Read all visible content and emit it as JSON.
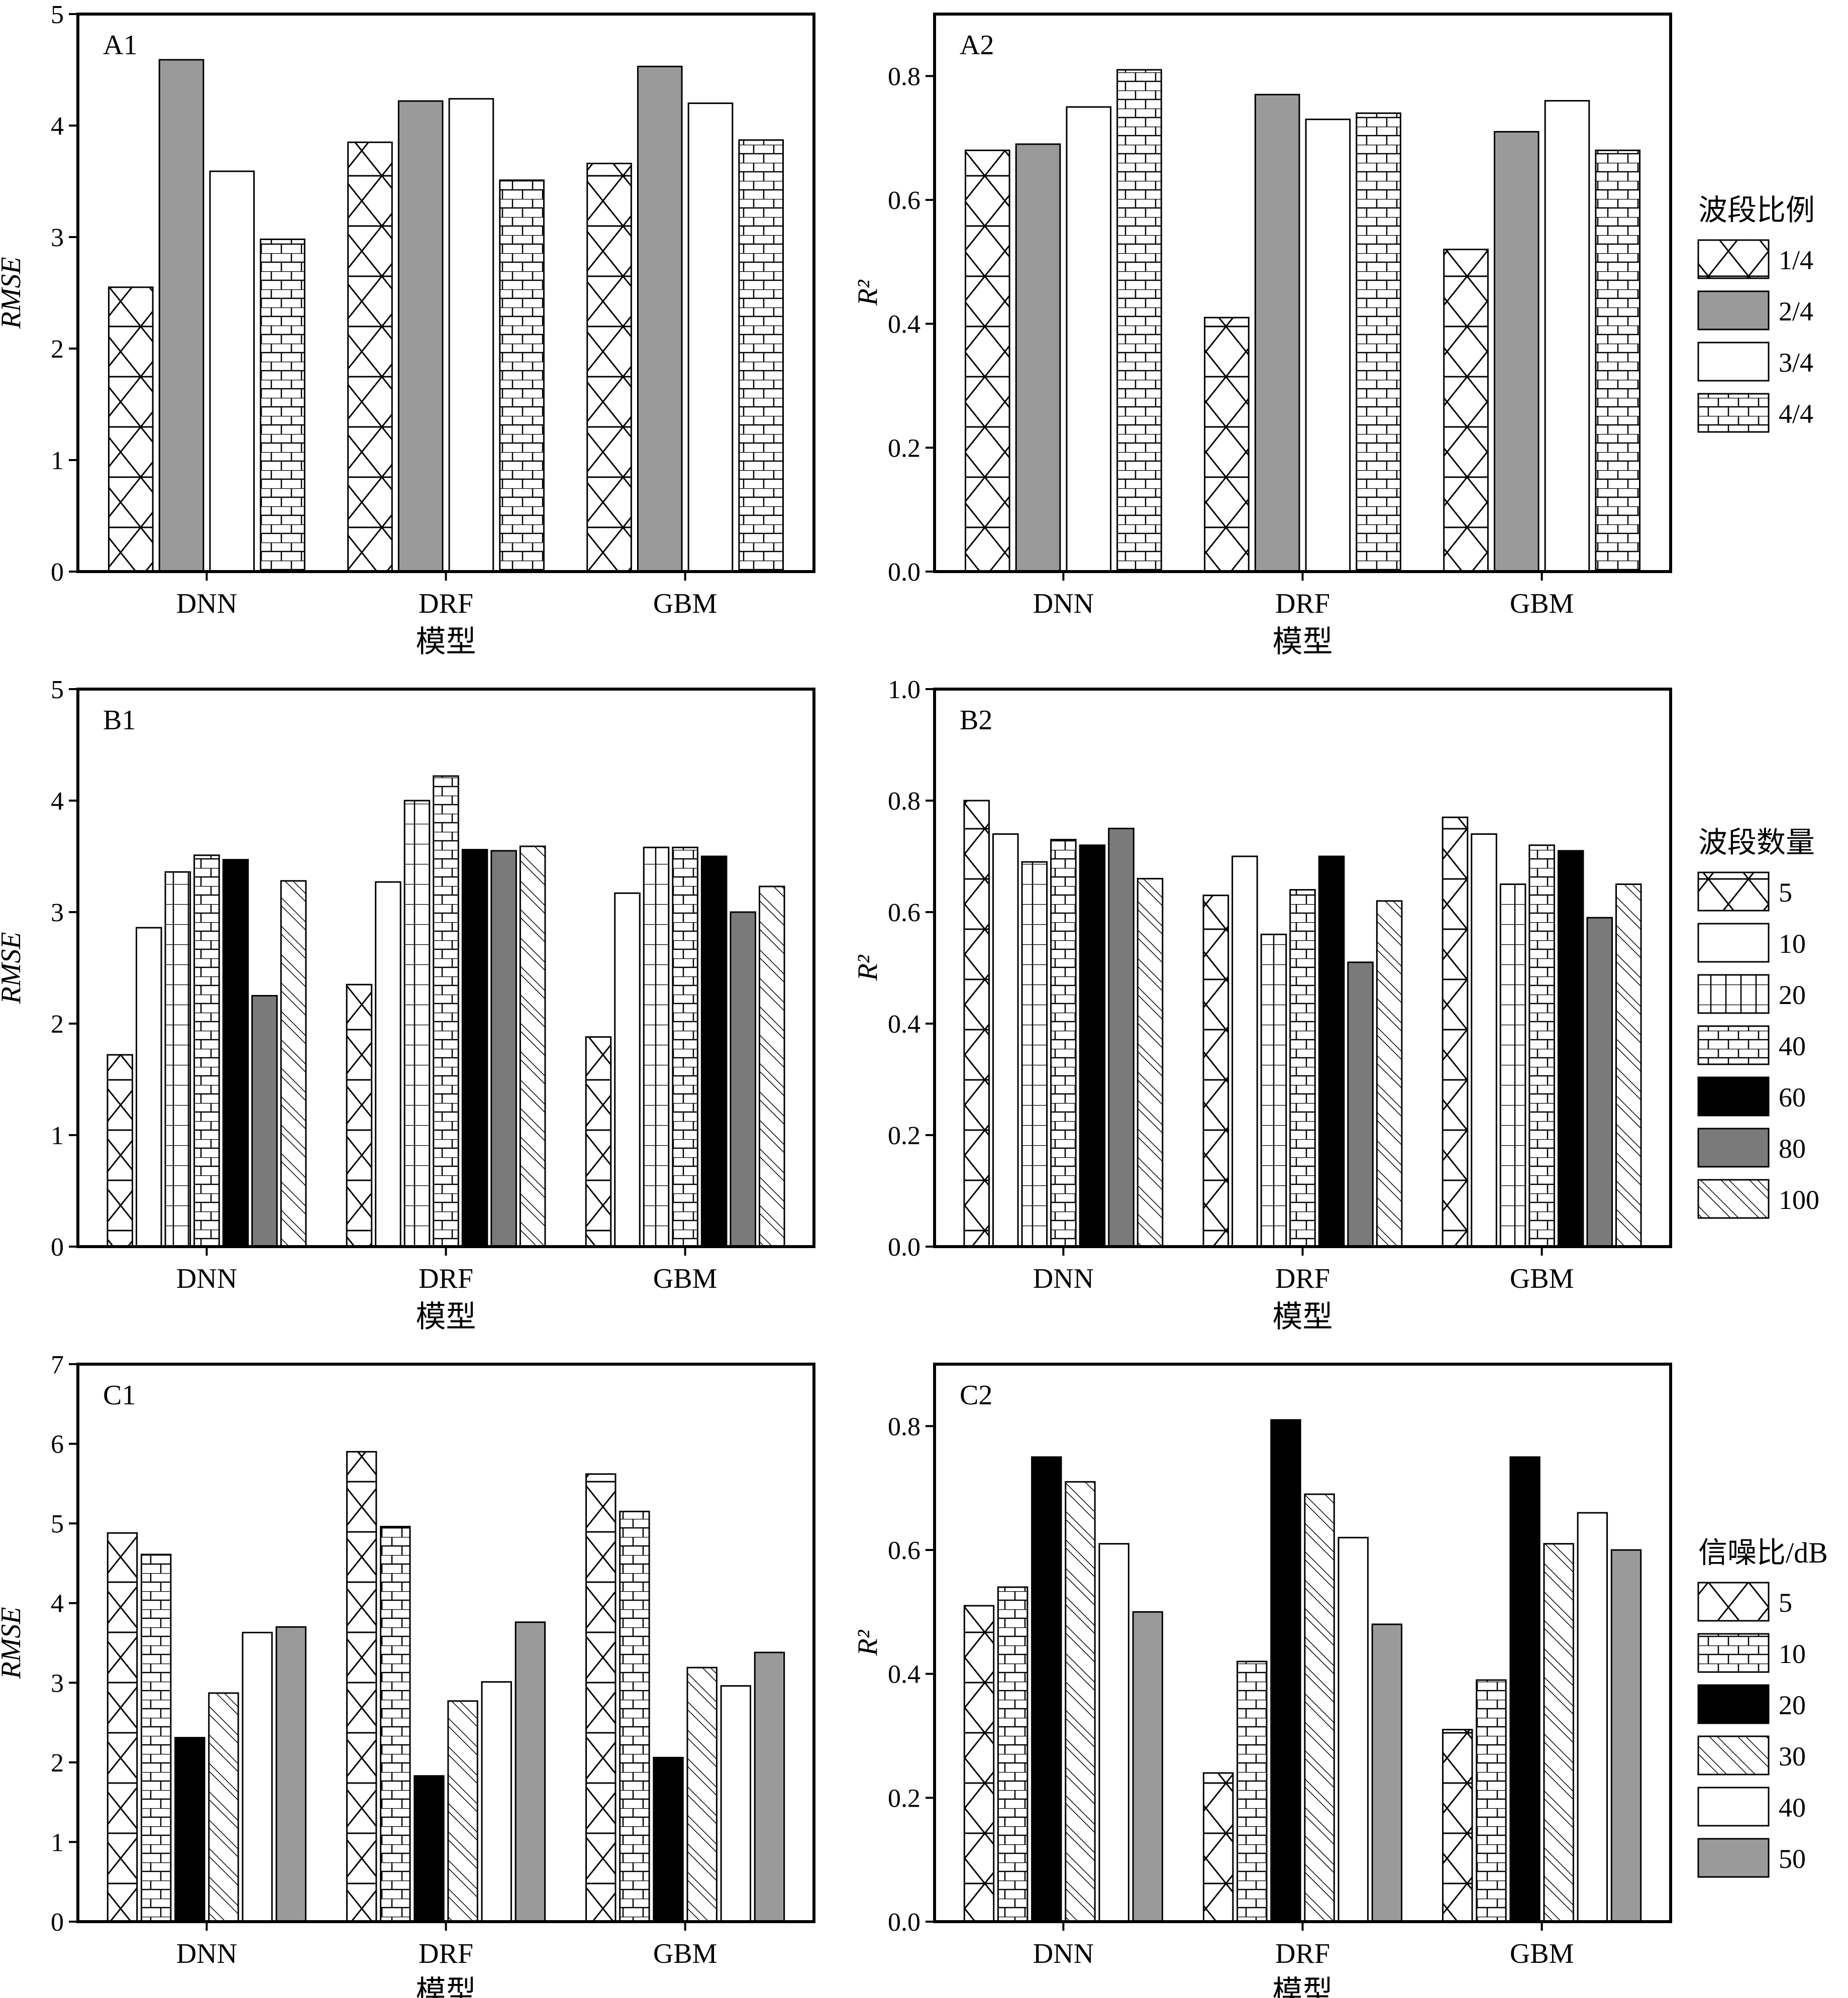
{
  "chart_data": [
    {
      "type": "bar",
      "panel_label": "A1",
      "categories": [
        "DNN",
        "DRF",
        "GBM"
      ],
      "xlabel": "模型",
      "ylabel": "RMSE",
      "ylim": [
        0,
        5
      ],
      "yticks": [
        "0",
        "1",
        "2",
        "3",
        "4",
        "5"
      ],
      "series": [
        {
          "pattern": "cross",
          "values": [
            2.55,
            3.85,
            3.66
          ]
        },
        {
          "pattern": "gray",
          "values": [
            4.59,
            4.22,
            4.53
          ]
        },
        {
          "pattern": "white",
          "values": [
            3.59,
            4.24,
            4.2
          ]
        },
        {
          "pattern": "brick",
          "values": [
            2.98,
            3.51,
            3.87
          ]
        }
      ]
    },
    {
      "type": "bar",
      "panel_label": "A2",
      "categories": [
        "DNN",
        "DRF",
        "GBM"
      ],
      "xlabel": "模型",
      "ylabel": "R²",
      "ylim": [
        0,
        0.9
      ],
      "yticks": [
        "0.0",
        "0.2",
        "0.4",
        "0.6",
        "0.8"
      ],
      "legend_title": "波段比例",
      "series": [
        {
          "name": "1/4",
          "pattern": "cross",
          "values": [
            0.68,
            0.41,
            0.52
          ]
        },
        {
          "name": "2/4",
          "pattern": "gray",
          "values": [
            0.69,
            0.77,
            0.71
          ]
        },
        {
          "name": "3/4",
          "pattern": "white",
          "values": [
            0.75,
            0.73,
            0.76
          ]
        },
        {
          "name": "4/4",
          "pattern": "brick",
          "values": [
            0.81,
            0.74,
            0.68
          ]
        }
      ]
    },
    {
      "type": "bar",
      "panel_label": "B1",
      "categories": [
        "DNN",
        "DRF",
        "GBM"
      ],
      "xlabel": "模型",
      "ylabel": "RMSE",
      "ylim": [
        0,
        5
      ],
      "yticks": [
        "0",
        "1",
        "2",
        "3",
        "4",
        "5"
      ],
      "series": [
        {
          "pattern": "cross",
          "values": [
            1.72,
            2.35,
            1.88
          ]
        },
        {
          "pattern": "white",
          "values": [
            2.86,
            3.27,
            3.17
          ]
        },
        {
          "pattern": "grid",
          "values": [
            3.36,
            4.0,
            3.58
          ]
        },
        {
          "pattern": "brick",
          "values": [
            3.51,
            4.22,
            3.58
          ]
        },
        {
          "pattern": "black",
          "values": [
            3.47,
            3.56,
            3.5
          ]
        },
        {
          "pattern": "darkgray",
          "values": [
            2.25,
            3.55,
            3.0
          ]
        },
        {
          "pattern": "diag",
          "values": [
            3.28,
            3.59,
            3.23
          ]
        }
      ]
    },
    {
      "type": "bar",
      "panel_label": "B2",
      "categories": [
        "DNN",
        "DRF",
        "GBM"
      ],
      "xlabel": "模型",
      "ylabel": "R²",
      "ylim": [
        0,
        1.0
      ],
      "yticks": [
        "0.0",
        "0.2",
        "0.4",
        "0.6",
        "0.8",
        "1.0"
      ],
      "legend_title": "波段数量",
      "series": [
        {
          "name": "5",
          "pattern": "cross",
          "values": [
            0.8,
            0.63,
            0.77
          ]
        },
        {
          "name": "10",
          "pattern": "white",
          "values": [
            0.74,
            0.7,
            0.74
          ]
        },
        {
          "name": "20",
          "pattern": "grid",
          "values": [
            0.69,
            0.56,
            0.65
          ]
        },
        {
          "name": "40",
          "pattern": "brick",
          "values": [
            0.73,
            0.64,
            0.72
          ]
        },
        {
          "name": "60",
          "pattern": "black",
          "values": [
            0.72,
            0.7,
            0.71
          ]
        },
        {
          "name": "80",
          "pattern": "darkgray",
          "values": [
            0.75,
            0.51,
            0.59
          ]
        },
        {
          "name": "100",
          "pattern": "diag",
          "values": [
            0.66,
            0.62,
            0.65
          ]
        }
      ]
    },
    {
      "type": "bar",
      "panel_label": "C1",
      "categories": [
        "DNN",
        "DRF",
        "GBM"
      ],
      "xlabel": "模型",
      "ylabel": "RMSE",
      "ylim": [
        0,
        7
      ],
      "yticks": [
        "0",
        "1",
        "2",
        "3",
        "4",
        "5",
        "6",
        "7"
      ],
      "series": [
        {
          "pattern": "cross",
          "values": [
            4.88,
            5.9,
            5.62
          ]
        },
        {
          "pattern": "brick",
          "values": [
            4.61,
            4.96,
            5.15
          ]
        },
        {
          "pattern": "black",
          "values": [
            2.31,
            1.83,
            2.06
          ]
        },
        {
          "pattern": "diag",
          "values": [
            2.87,
            2.77,
            3.19
          ]
        },
        {
          "pattern": "white",
          "values": [
            3.63,
            3.01,
            2.96
          ]
        },
        {
          "pattern": "gray",
          "values": [
            3.7,
            3.76,
            3.38
          ]
        }
      ]
    },
    {
      "type": "bar",
      "panel_label": "C2",
      "categories": [
        "DNN",
        "DRF",
        "GBM"
      ],
      "xlabel": "模型",
      "ylabel": "R²",
      "ylim": [
        0,
        0.9
      ],
      "yticks": [
        "0.0",
        "0.2",
        "0.4",
        "0.6",
        "0.8"
      ],
      "legend_title": "信噪比/dB",
      "series": [
        {
          "name": "5",
          "pattern": "cross",
          "values": [
            0.51,
            0.24,
            0.31
          ]
        },
        {
          "name": "10",
          "pattern": "brick",
          "values": [
            0.54,
            0.42,
            0.39
          ]
        },
        {
          "name": "20",
          "pattern": "black",
          "values": [
            0.75,
            0.81,
            0.75
          ]
        },
        {
          "name": "30",
          "pattern": "diag",
          "values": [
            0.71,
            0.69,
            0.61
          ]
        },
        {
          "name": "40",
          "pattern": "white",
          "values": [
            0.61,
            0.62,
            0.66
          ]
        },
        {
          "name": "50",
          "pattern": "gray",
          "values": [
            0.5,
            0.48,
            0.6
          ]
        }
      ]
    }
  ]
}
